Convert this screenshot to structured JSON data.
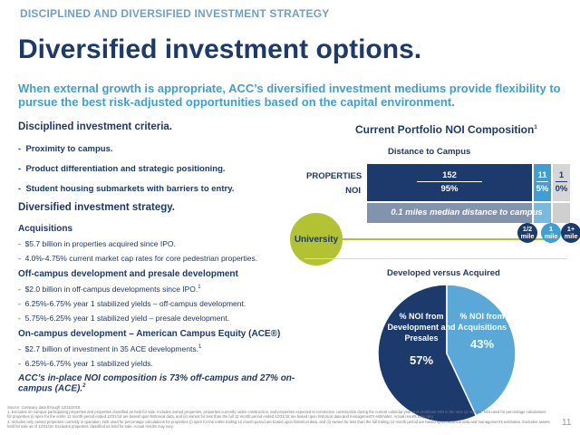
{
  "header": {
    "section_tag": "DISCIPLINED AND DIVERSIFIED INVESTMENT STRATEGY",
    "title": "Diversified investment options.",
    "subtitle": "When external growth is appropriate, ACC’s diversified investment mediums provide flexibility to pursue the best risk-adjusted opportunities based on the capital environment."
  },
  "criteria": {
    "heading": "Disciplined investment criteria.",
    "items": [
      "Proximity to campus.",
      "Product differentiation and strategic positioning.",
      "Student housing submarkets with barriers to entry."
    ]
  },
  "strategy": {
    "heading": "Diversified investment strategy.",
    "acquisitions": {
      "heading": "Acquisitions",
      "items": [
        "$5.7 billion in properties acquired since IPO.",
        "4.0%-4.75% current market cap rates for core pedestrian properties."
      ]
    },
    "offcampus": {
      "heading": "Off-campus development and presale development",
      "items": [
        "$2.0 billion in off-campus developments since IPO.",
        "6.25%-6.75% year 1 stabilized yields – off-campus development.",
        "5.75%-6.25% year 1 stabilized yield – presale development."
      ]
    },
    "oncampus": {
      "heading": "On-campus development – American Campus Equity (ACE®)",
      "items": [
        "$2.7 billion of investment in 35 ACE developments.",
        "6.25%-6.75% year 1 stabilized yields."
      ]
    },
    "closing": "ACC’s in-place NOI composition is 73% off-campus and 27% on-campus (ACE)."
  },
  "chart_data": [
    {
      "type": "bar",
      "title": "Current Portfolio NOI Composition",
      "title_footnote": "1",
      "subtitle": "Distance to Campus",
      "row_labels": [
        "PROPERTIES",
        "NOI"
      ],
      "categories": [
        "1/2 mile",
        "1 mile",
        "1+ mile"
      ],
      "series": [
        {
          "name": "PROPERTIES",
          "values": [
            152,
            11,
            1
          ]
        },
        {
          "name": "NOI",
          "values": [
            95,
            5,
            0
          ],
          "unit": "%"
        }
      ],
      "value_labels": {
        "properties": [
          "152",
          "11",
          "1"
        ],
        "noi": [
          "95%",
          "5%",
          "0%"
        ]
      },
      "annotation": "0.1 miles median distance to campus",
      "origin_label": "University",
      "colors": [
        "#1c3a6b",
        "#3d9fd3",
        "#d6d6d6"
      ]
    },
    {
      "type": "pie",
      "title": "Developed versus Acquired",
      "slices": [
        {
          "label": "% NOI from Development and Presales",
          "value": 57,
          "display": "57%",
          "color": "#1c3a6b"
        },
        {
          "label": "% NOI from Acquisitions",
          "value": 43,
          "display": "43%",
          "color": "#5aa8d8"
        }
      ]
    }
  ],
  "footnotes": {
    "source": "Source: Company data through 12/31/2018.",
    "note1": "1. Excludes on-campus participating properties and properties classified as held for sale. Includes owned properties, properties currently under construction, and properties expected to commence construction during the current calendar year and contribute NOI in the next 12 months. NOI used for percentage calculations for properties (i) open for the entire 12 month period ended 12/31/18 are based upon historical data, and (ii) owned for less than the full 12 month period ended 12/31/18 are based upon historical data and management's estimates. Actual results may vary.",
    "note2": "2. Includes only owned properties currently in operation. NOI used for percentage calculations for properties (i) open for the entire trailing 12 month period are based upon historical data, and (ii) owned for less than the full trailing 12 month period are based upon historical data and management's estimates. Excludes assets held for sale as of 12/31/18. Excludes properties classified as held for sale. Actual results may vary."
  },
  "page_number": "11"
}
